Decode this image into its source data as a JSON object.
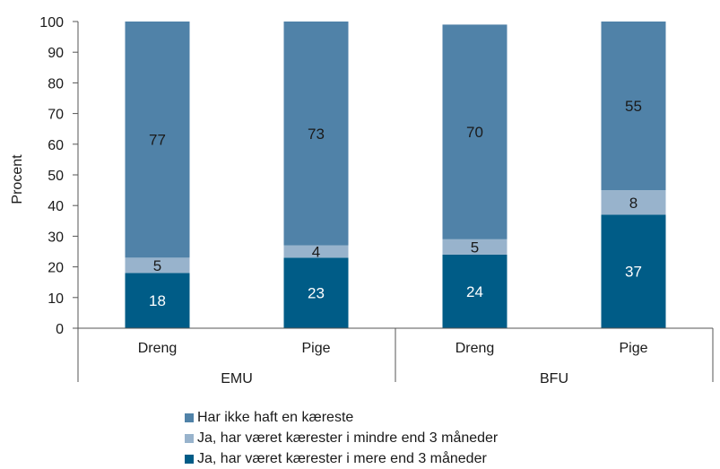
{
  "chart_data": {
    "type": "bar",
    "stacked": true,
    "ylabel": "Procent",
    "ylim": [
      0,
      100
    ],
    "yticks": [
      0,
      10,
      20,
      30,
      40,
      50,
      60,
      70,
      80,
      90,
      100
    ],
    "categories": [
      "Dreng",
      "Pige",
      "Dreng",
      "Pige"
    ],
    "groups": [
      {
        "label": "EMU",
        "categories": [
          0,
          1
        ]
      },
      {
        "label": "BFU",
        "categories": [
          2,
          3
        ]
      }
    ],
    "series": [
      {
        "name": "Ja, har været kærester i mere end 3 måneder",
        "values": [
          18,
          23,
          24,
          37
        ],
        "color": "#005c87",
        "label_color": "#ffffff"
      },
      {
        "name": "Ja, har været kærester i mindre end 3 måneder",
        "values": [
          5,
          4,
          5,
          8
        ],
        "color": "#98b3cc",
        "label_color": "#1a1a1a"
      },
      {
        "name": "Har ikke haft en kæreste",
        "values": [
          77,
          73,
          70,
          55
        ],
        "color": "#5082a8",
        "label_color": "#1a1a1a"
      }
    ],
    "legend_order": [
      2,
      1,
      0
    ],
    "legend_position": "bottom",
    "grid": false
  }
}
